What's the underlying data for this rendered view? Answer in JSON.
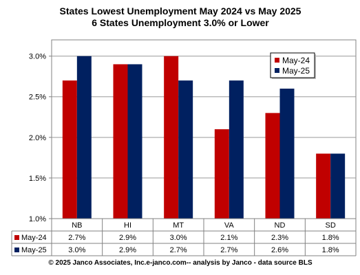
{
  "chart_data": {
    "type": "bar",
    "title": "States Lowest Unemployment May 2024 vs May 2025",
    "subtitle": "6 States  Unemployment 3.0% or Lower",
    "categories": [
      "NB",
      "HI",
      "MT",
      "VA",
      "ND",
      "SD"
    ],
    "series": [
      {
        "name": "May-24",
        "color": "#c00000",
        "values": [
          2.7,
          2.9,
          3.0,
          2.1,
          2.3,
          1.8
        ],
        "labels": [
          "2.7%",
          "2.9%",
          "3.0%",
          "2.1%",
          "2.3%",
          "1.8%"
        ]
      },
      {
        "name": "May-25",
        "color": "#002060",
        "values": [
          3.0,
          2.9,
          2.7,
          2.7,
          2.6,
          1.8
        ],
        "labels": [
          "3.0%",
          "2.9%",
          "2.7%",
          "2.7%",
          "2.6%",
          "1.8%"
        ]
      }
    ],
    "ylim": [
      1.0,
      3.2
    ],
    "yticks": [
      1.0,
      1.5,
      2.0,
      2.5,
      3.0
    ],
    "ytick_labels": [
      "1.0%",
      "1.5%",
      "2.0%",
      "2.5%",
      "3.0%"
    ],
    "grid": true,
    "legend_placement": "top-right",
    "data_table": true,
    "footer": "© 2025 Janco Associates, Inc.e-janco.com-- analysis by Janco - data source BLS"
  }
}
